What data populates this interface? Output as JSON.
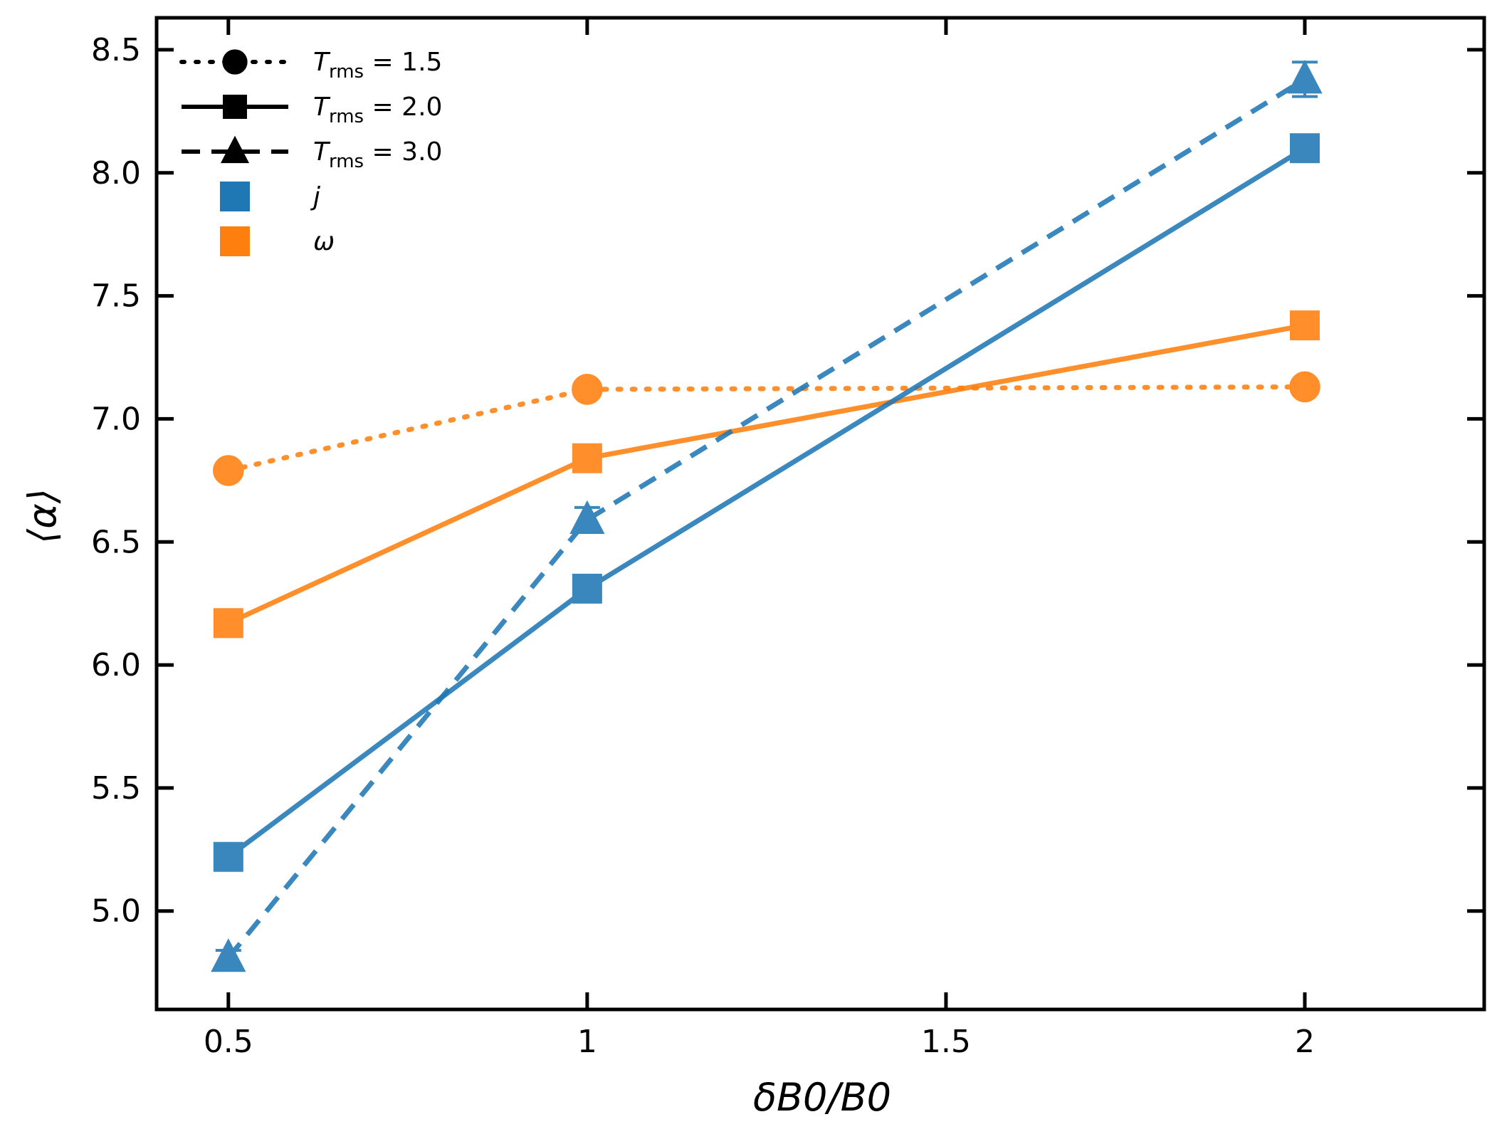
{
  "chart_data": {
    "type": "line",
    "xlabel": "δB0/B0",
    "ylabel": "⟨α⟩",
    "xlim": [
      0.4,
      2.25
    ],
    "ylim": [
      4.6,
      8.63
    ],
    "x_ticks": [
      0.5,
      1,
      1.5,
      2
    ],
    "x_tick_labels": [
      "0.5",
      "1",
      "1.5",
      "2"
    ],
    "y_ticks": [
      5.0,
      5.5,
      6.0,
      6.5,
      7.0,
      7.5,
      8.0,
      8.5
    ],
    "y_tick_labels": [
      "5.0",
      "5.5",
      "6.0",
      "6.5",
      "7.0",
      "7.5",
      "8.0",
      "8.5"
    ],
    "colors": {
      "j": "#1f77b4",
      "omega": "#ff7f0e"
    },
    "series": [
      {
        "name": "ω, T_rms = 1.5",
        "quantity": "omega",
        "trms": "1.5",
        "linestyle": "dotted",
        "marker": "circle",
        "x": [
          0.5,
          1,
          2
        ],
        "values": [
          6.79,
          7.12,
          7.13
        ],
        "errors": [
          0.02,
          0.02,
          0.02
        ]
      },
      {
        "name": "ω, T_rms = 2.0",
        "quantity": "omega",
        "trms": "2.0",
        "linestyle": "solid",
        "marker": "square",
        "x": [
          0.5,
          1,
          2
        ],
        "values": [
          6.17,
          6.84,
          7.38
        ],
        "errors": [
          0.02,
          0.02,
          0.02
        ]
      },
      {
        "name": "j, T_rms = 2.0",
        "quantity": "j",
        "trms": "2.0",
        "linestyle": "solid",
        "marker": "square",
        "x": [
          0.5,
          1,
          2
        ],
        "values": [
          5.22,
          6.31,
          8.1
        ],
        "errors": [
          0.02,
          0.02,
          0.02
        ]
      },
      {
        "name": "j, T_rms = 3.0",
        "quantity": "j",
        "trms": "3.0",
        "linestyle": "dashed",
        "marker": "triangle",
        "x": [
          0.5,
          1,
          2
        ],
        "values": [
          4.81,
          6.59,
          8.38
        ],
        "errors": [
          0.03,
          0.05,
          0.07
        ]
      }
    ],
    "legend": {
      "placement": "top-left",
      "entries": [
        {
          "symbol": "T",
          "subscript": "rms",
          "rest": " = 1.5",
          "linestyle": "dotted",
          "marker": "circle",
          "color": "#000000"
        },
        {
          "symbol": "T",
          "subscript": "rms",
          "rest": " = 2.0",
          "linestyle": "solid",
          "marker": "square",
          "color": "#000000"
        },
        {
          "symbol": "T",
          "subscript": "rms",
          "rest": " = 3.0",
          "linestyle": "dashed",
          "marker": "triangle",
          "color": "#000000"
        },
        {
          "symbol": "j",
          "subscript": "",
          "rest": "",
          "linestyle": "none",
          "marker": "square",
          "color": "#1f77b4"
        },
        {
          "symbol": "ω",
          "subscript": "",
          "rest": "",
          "linestyle": "none",
          "marker": "square",
          "color": "#ff7f0e"
        }
      ]
    }
  }
}
